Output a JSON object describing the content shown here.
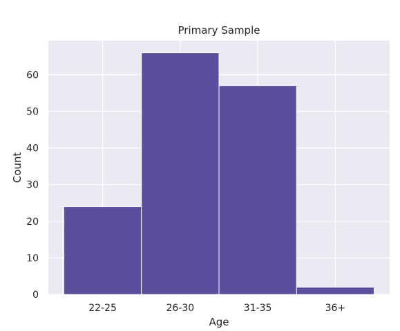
{
  "chart_data": {
    "type": "bar",
    "title": "Primary Sample",
    "xlabel": "Age",
    "ylabel": "Count",
    "categories": [
      "22-25",
      "26-30",
      "31-35",
      "36+"
    ],
    "values": [
      24,
      66,
      57,
      2
    ],
    "ylim": [
      0,
      69.3
    ],
    "yticks": [
      0,
      10,
      20,
      30,
      40,
      50,
      60
    ],
    "grid": true,
    "colors": {
      "bar_fill": "#5b4e9f",
      "bar_edge": "#ffffff",
      "plot_background": "#eaeaf2",
      "grid": "#ffffff",
      "text": "#262626"
    }
  }
}
